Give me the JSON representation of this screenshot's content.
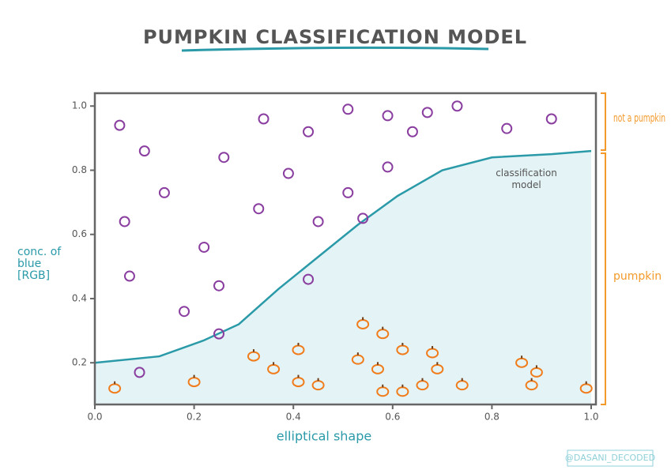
{
  "chart_data": {
    "type": "scatter",
    "title": "PUMPKIN CLASSIFICATION MODEL",
    "x_label": "elliptical shape",
    "y_label": "conc. of blue [RGB]",
    "annotation": "classification model",
    "credit": "@DASANI_DECODED",
    "xlim": [
      0,
      1
    ],
    "ylim": [
      0.07,
      1.04
    ],
    "xticks": [
      {
        "value": 0,
        "label": "0.0"
      },
      0.2,
      0.4,
      0.6,
      0.8,
      {
        "value": 1,
        "label": "1.0"
      }
    ],
    "yticks": [
      0.2,
      0.4,
      0.6,
      0.8,
      {
        "value": 1,
        "label": "1.0"
      }
    ],
    "curve": {
      "color": "#2a9aa8",
      "fill": "#e4f3f5",
      "x": [
        0,
        0.13,
        0.22,
        0.29,
        0.37,
        0.45,
        0.53,
        0.61,
        0.7,
        0.8,
        0.92,
        1.0
      ],
      "y": [
        0.2,
        0.22,
        0.27,
        0.32,
        0.43,
        0.53,
        0.63,
        0.72,
        0.8,
        0.84,
        0.85,
        0.86
      ]
    },
    "series": [
      {
        "name": "not a pumpkin",
        "color": "#8a3ea0",
        "x": [
          0.05,
          0.1,
          0.14,
          0.06,
          0.07,
          0.18,
          0.22,
          0.25,
          0.26,
          0.33,
          0.34,
          0.39,
          0.43,
          0.45,
          0.51,
          0.51,
          0.54,
          0.43,
          0.59,
          0.59,
          0.64,
          0.67,
          0.73,
          0.83,
          0.92,
          0.09,
          0.25
        ],
        "y": [
          0.94,
          0.86,
          0.73,
          0.64,
          0.47,
          0.36,
          0.56,
          0.44,
          0.84,
          0.68,
          0.96,
          0.79,
          0.92,
          0.64,
          0.99,
          0.73,
          0.65,
          0.46,
          0.81,
          0.97,
          0.92,
          0.98,
          1.0,
          0.93,
          0.96,
          0.17,
          0.29
        ]
      },
      {
        "name": "pumpkin",
        "color": "#f07c1b",
        "x": [
          0.04,
          0.2,
          0.32,
          0.36,
          0.41,
          0.41,
          0.45,
          0.53,
          0.54,
          0.57,
          0.58,
          0.62,
          0.58,
          0.62,
          0.66,
          0.68,
          0.69,
          0.74,
          0.86,
          0.89,
          0.88,
          0.99
        ],
        "y": [
          0.12,
          0.14,
          0.22,
          0.18,
          0.14,
          0.24,
          0.13,
          0.21,
          0.32,
          0.18,
          0.29,
          0.24,
          0.11,
          0.11,
          0.13,
          0.23,
          0.18,
          0.13,
          0.2,
          0.17,
          0.13,
          0.12
        ]
      }
    ],
    "bracket_color": "#f39a2b"
  }
}
